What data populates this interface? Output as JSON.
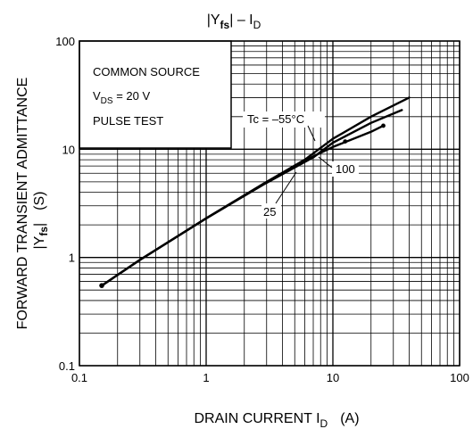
{
  "chart_data": {
    "type": "line",
    "title_main": "|Y",
    "title_sub": "fs",
    "title_rest": "| – I",
    "title_sub2": "D",
    "xlabel_main": "DRAIN CURRENT  I",
    "xlabel_sub": "D",
    "xlabel_unit": "(A)",
    "ylabel_line1": "FORWARD TRANSIENT ADMITTANCE",
    "ylabel_abs_open": "|Y",
    "ylabel_abs_sub": "fs",
    "ylabel_abs_close": "|",
    "ylabel_unit": "(S)",
    "x_scale": "log",
    "y_scale": "log",
    "xlim": [
      0.1,
      100
    ],
    "ylim": [
      0.1,
      100
    ],
    "x_ticks": [
      {
        "value": 0.1,
        "label": "0.1"
      },
      {
        "value": 1,
        "label": "1"
      },
      {
        "value": 10,
        "label": "10"
      },
      {
        "value": 100,
        "label": "100"
      }
    ],
    "y_ticks": [
      {
        "value": 0.1,
        "label": "0.1"
      },
      {
        "value": 1,
        "label": "1"
      },
      {
        "value": 10,
        "label": "10"
      },
      {
        "value": 100,
        "label": "100"
      }
    ],
    "grid": true,
    "conditions": {
      "line1": "COMMON SOURCE",
      "line2_main": "V",
      "line2_sub": "DS",
      "line2_rest": " = 20 V",
      "line3": "PULSE TEST"
    },
    "series": [
      {
        "name": "Tc = –55°C",
        "values": [
          [
            0.15,
            0.55
          ],
          [
            0.3,
            0.95
          ],
          [
            1,
            2.3
          ],
          [
            3,
            5.0
          ],
          [
            6,
            8.0
          ],
          [
            10,
            12.5
          ],
          [
            20,
            20
          ],
          [
            40,
            30
          ]
        ]
      },
      {
        "name": "100",
        "values": [
          [
            0.15,
            0.55
          ],
          [
            0.3,
            0.95
          ],
          [
            1,
            2.3
          ],
          [
            3,
            5.0
          ],
          [
            7,
            8.6
          ],
          [
            10,
            10.5
          ],
          [
            20,
            14.5
          ],
          [
            25,
            16.5
          ]
        ]
      },
      {
        "name": "25",
        "values": [
          [
            0.15,
            0.55
          ],
          [
            0.3,
            0.95
          ],
          [
            1,
            2.3
          ],
          [
            3,
            4.9
          ],
          [
            7,
            8.4
          ],
          [
            10,
            11.5
          ],
          [
            20,
            17.5
          ],
          [
            35,
            23
          ]
        ]
      }
    ],
    "annotation_points": [
      {
        "series": "100",
        "x": 25,
        "y": 16.5
      },
      {
        "series": "100",
        "x": 12.5,
        "y": 11.8
      }
    ]
  }
}
